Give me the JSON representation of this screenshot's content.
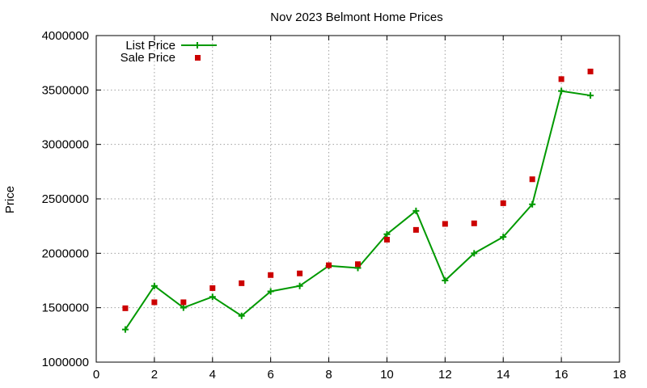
{
  "chart_data": {
    "type": "line",
    "title": "Nov 2023 Belmont Home Prices",
    "xlabel": "",
    "ylabel": "Price",
    "xlim": [
      0,
      18
    ],
    "ylim": [
      1000000,
      4000000
    ],
    "x_ticks": [
      0,
      2,
      4,
      6,
      8,
      10,
      12,
      14,
      16,
      18
    ],
    "y_ticks": [
      1000000,
      1500000,
      2000000,
      2500000,
      3000000,
      3500000,
      4000000
    ],
    "grid": true,
    "legend_position": "top-left",
    "series": [
      {
        "name": "List Price",
        "style": "line-with-plus-markers",
        "color": "#009900",
        "x": [
          1,
          2,
          3,
          4,
          5,
          6,
          7,
          8,
          9,
          10,
          11,
          12,
          13,
          14,
          15,
          16,
          17
        ],
        "values": [
          1300000,
          1700000,
          1500000,
          1600000,
          1425000,
          1650000,
          1700000,
          1885000,
          1865000,
          2175000,
          2390000,
          1750000,
          2000000,
          2150000,
          2450000,
          3490000,
          3450000
        ]
      },
      {
        "name": "Sale Price",
        "style": "square-markers",
        "color": "#cc0000",
        "x": [
          1,
          2,
          3,
          4,
          5,
          6,
          7,
          8,
          9,
          10,
          11,
          12,
          13,
          14,
          15,
          16,
          17
        ],
        "values": [
          1495000,
          1550000,
          1550000,
          1680000,
          1725000,
          1800000,
          1815000,
          1890000,
          1900000,
          2125000,
          2215000,
          2270000,
          2275000,
          2460000,
          2680000,
          3600000,
          3670000
        ]
      }
    ]
  }
}
